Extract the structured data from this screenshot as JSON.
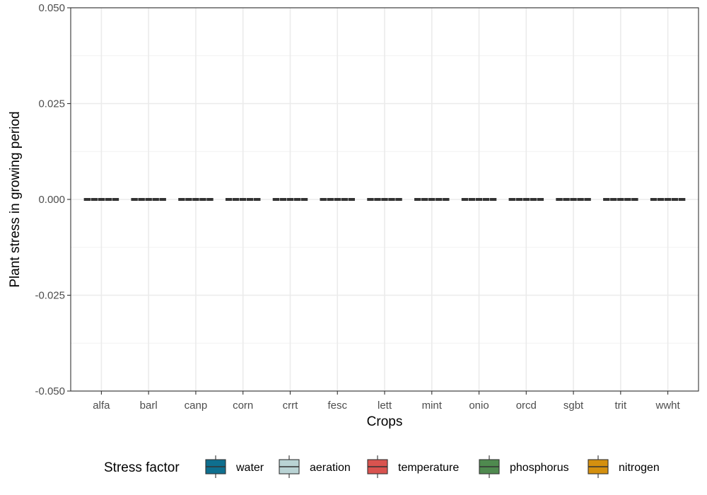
{
  "chart_data": {
    "type": "boxplot",
    "title": "",
    "xlabel": "Crops",
    "ylabel": "Plant stress in growing period",
    "ylim": [
      -0.05,
      0.05
    ],
    "yticks": [
      "0.050",
      "0.025",
      "0.000",
      "-0.025",
      "-0.050"
    ],
    "ytick_values": [
      0.05,
      0.025,
      0.0,
      -0.025,
      -0.05
    ],
    "categories": [
      "alfa",
      "barl",
      "canp",
      "corn",
      "crrt",
      "fesc",
      "lett",
      "mint",
      "onio",
      "orcd",
      "sgbt",
      "trit",
      "wwht"
    ],
    "grid": true,
    "legend": {
      "title": "Stress factor",
      "position": "bottom"
    },
    "series": [
      {
        "name": "water",
        "color": "#0e6f8f",
        "values": [
          0,
          0,
          0,
          0,
          0,
          0,
          0,
          0,
          0,
          0,
          0,
          0,
          0
        ]
      },
      {
        "name": "aeration",
        "color": "#b9d3d4",
        "values": [
          0,
          0,
          0,
          0,
          0,
          0,
          0,
          0,
          0,
          0,
          0,
          0,
          0
        ]
      },
      {
        "name": "temperature",
        "color": "#d9534f",
        "values": [
          0,
          0,
          0,
          0,
          0,
          0,
          0,
          0,
          0,
          0,
          0,
          0,
          0
        ]
      },
      {
        "name": "phosphorus",
        "color": "#4f8a4f",
        "values": [
          0,
          0,
          0,
          0,
          0,
          0,
          0,
          0,
          0,
          0,
          0,
          0,
          0
        ]
      },
      {
        "name": "nitrogen",
        "color": "#d4900f",
        "values": [
          0,
          0,
          0,
          0,
          0,
          0,
          0,
          0,
          0,
          0,
          0,
          0,
          0
        ]
      }
    ]
  }
}
